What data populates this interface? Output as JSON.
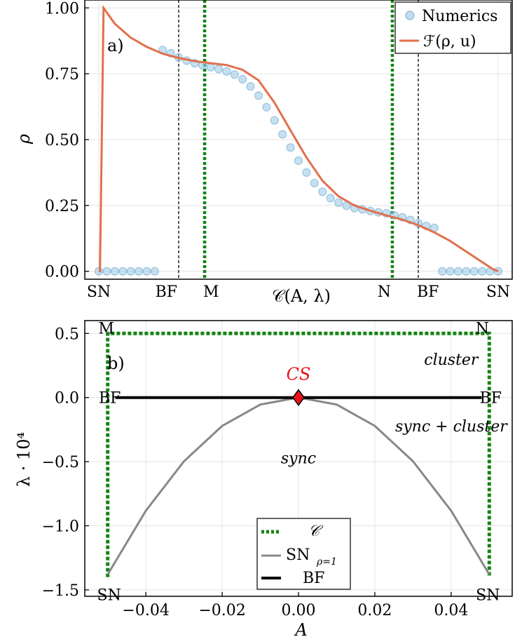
{
  "chart_data": [
    {
      "type": "scatter",
      "panel_label": "a)",
      "ylabel": "ρ",
      "xlabel": "𝒞(A, λ)",
      "xlim": [
        0,
        1
      ],
      "ylim": [
        -0.03,
        1.03
      ],
      "y_ticks": [
        0.0,
        0.25,
        0.5,
        0.75,
        1.0
      ],
      "y_tick_labels": [
        "0.00",
        "0.25",
        "0.50",
        "0.75",
        "1.00"
      ],
      "x_markers": [
        {
          "label": "SN",
          "x": 0.0
        },
        {
          "label": "BF",
          "x": 0.2
        },
        {
          "label": "M",
          "x": 0.265
        },
        {
          "label": "N",
          "x": 0.735
        },
        {
          "label": "BF",
          "x": 0.8
        },
        {
          "label": "SN",
          "x": 1.0
        }
      ],
      "vlines": [
        {
          "x": 0.2,
          "style": "black-dashed"
        },
        {
          "x": 0.265,
          "style": "green-dotted"
        },
        {
          "x": 0.735,
          "style": "green-dotted"
        },
        {
          "x": 0.8,
          "style": "black-dashed"
        }
      ],
      "legend": [
        "Numerics",
        "ℱ(ρ, u)"
      ],
      "legend_position": "top-right",
      "grid": true,
      "curve_F": {
        "x": [
          0.0,
          0.003,
          0.012,
          0.04,
          0.08,
          0.12,
          0.16,
          0.2,
          0.24,
          0.28,
          0.32,
          0.36,
          0.4,
          0.44,
          0.48,
          0.52,
          0.56,
          0.6,
          0.64,
          0.68,
          0.72,
          0.76,
          0.8,
          0.84,
          0.88,
          0.92,
          0.96,
          0.985,
          1.0
        ],
        "y": [
          0.0,
          0.0,
          1.0,
          0.94,
          0.887,
          0.852,
          0.826,
          0.81,
          0.798,
          0.79,
          0.783,
          0.765,
          0.725,
          0.64,
          0.535,
          0.432,
          0.344,
          0.285,
          0.25,
          0.23,
          0.212,
          0.196,
          0.175,
          0.148,
          0.115,
          0.075,
          0.035,
          0.01,
          0.0
        ]
      },
      "numerics": {
        "x": [
          0.0,
          0.02,
          0.04,
          0.06,
          0.08,
          0.1,
          0.12,
          0.14,
          0.16,
          0.18,
          0.2,
          0.22,
          0.24,
          0.26,
          0.28,
          0.3,
          0.32,
          0.34,
          0.36,
          0.38,
          0.4,
          0.42,
          0.44,
          0.46,
          0.48,
          0.5,
          0.52,
          0.54,
          0.56,
          0.58,
          0.6,
          0.62,
          0.64,
          0.66,
          0.68,
          0.7,
          0.72,
          0.74,
          0.76,
          0.78,
          0.8,
          0.82,
          0.84,
          0.86,
          0.88,
          0.9,
          0.92,
          0.94,
          0.96,
          0.98,
          1.0
        ],
        "y": [
          0.0,
          0.0,
          0.0,
          0.0,
          0.0,
          0.0,
          0.0,
          0.0,
          0.84,
          0.828,
          0.812,
          0.8,
          0.79,
          0.782,
          0.775,
          0.768,
          0.759,
          0.747,
          0.729,
          0.702,
          0.667,
          0.623,
          0.573,
          0.52,
          0.47,
          0.42,
          0.375,
          0.335,
          0.302,
          0.278,
          0.261,
          0.249,
          0.24,
          0.235,
          0.229,
          0.224,
          0.22,
          0.213,
          0.205,
          0.195,
          0.182,
          0.172,
          0.165,
          0.0,
          0.0,
          0.0,
          0.0,
          0.0,
          0.0,
          0.0,
          0.0
        ]
      }
    },
    {
      "type": "line",
      "panel_label": "b)",
      "xlabel": "A",
      "ylabel": "λ · 10⁴",
      "xlim": [
        -0.056,
        0.056
      ],
      "ylim": [
        -1.55,
        0.6
      ],
      "x_ticks": [
        -0.04,
        -0.02,
        0.0,
        0.02,
        0.04
      ],
      "x_tick_labels": [
        "−0.04",
        "−0.02",
        "0.00",
        "0.02",
        "0.04"
      ],
      "y_ticks": [
        0.5,
        0.0,
        -0.5,
        -1.0,
        -1.5
      ],
      "y_tick_labels": [
        "0.5",
        "0.0",
        "−0.5",
        "−1.0",
        "−1.5"
      ],
      "grid": true,
      "legend": [
        "𝒞",
        "SN",
        "ρ=1",
        "BF"
      ],
      "legend_position": "bottom-center",
      "series": [
        {
          "name": "𝒞",
          "style": "green-dotted",
          "x": [
            -0.05,
            -0.05,
            0.05,
            0.05
          ],
          "y": [
            -1.4,
            0.5,
            0.5,
            -1.4
          ]
        },
        {
          "name": "SN",
          "style": "gray",
          "x": [
            -0.05,
            -0.04,
            -0.03,
            -0.02,
            -0.01,
            0.0,
            0.01,
            0.02,
            0.03,
            0.04,
            0.05
          ],
          "y": [
            -1.38,
            -0.883,
            -0.497,
            -0.221,
            -0.055,
            0.0,
            -0.055,
            -0.221,
            -0.497,
            -0.883,
            -1.38
          ]
        },
        {
          "name": "BF",
          "style": "black",
          "x": [
            -0.048,
            0.048
          ],
          "y": [
            0.0,
            0.0
          ]
        }
      ],
      "point": {
        "label": "CS",
        "x": 0.0,
        "y": 0.0
      },
      "annotations": [
        {
          "text": "M",
          "x": -0.05,
          "y": 0.5
        },
        {
          "text": "N",
          "x": 0.05,
          "y": 0.5
        },
        {
          "text": "BF",
          "x": -0.05,
          "y": 0.0
        },
        {
          "text": "BF",
          "x": 0.05,
          "y": 0.0
        },
        {
          "text": "SN",
          "x": -0.05,
          "y": -1.4
        },
        {
          "text": "SN",
          "x": 0.05,
          "y": -1.4
        },
        {
          "text": "cluster",
          "x": 0.04,
          "y": 0.3
        },
        {
          "text": "sync + cluster",
          "x": 0.04,
          "y": -0.22
        },
        {
          "text": "sync",
          "x": 0.0,
          "y": -0.47
        }
      ]
    }
  ]
}
